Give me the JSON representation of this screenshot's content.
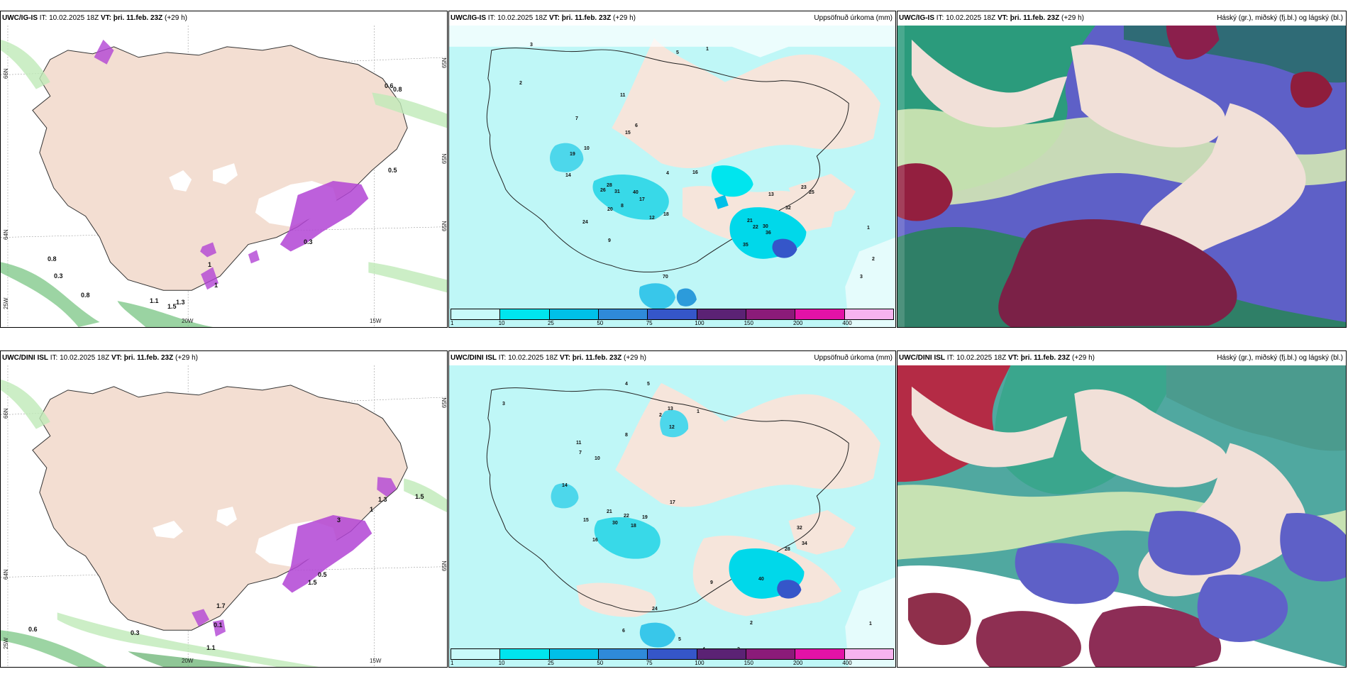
{
  "page": {
    "title": "UWC model comparison panels"
  },
  "panels": [
    {
      "model": "UWC/IG-IS",
      "it": "IT: 10.02.2025 18Z",
      "vt_label": "VT:",
      "vt": "þri. 11.feb. 23Z",
      "lead": "(+29 h)",
      "variable": "",
      "lon_labels": [
        "20W",
        "15W"
      ],
      "lat_labels": [
        "66N",
        "64N",
        "25W",
        "65N",
        "65N",
        "65N"
      ],
      "labels": [
        "0.6",
        "0.8",
        "0.5",
        "0.3",
        "1",
        "0.8",
        "0.8",
        "0.3",
        "1.1",
        "1.5",
        "1.3",
        "1"
      ]
    },
    {
      "model": "UWC/IG-IS",
      "it": "IT: 10.02.2025 18Z",
      "vt_label": "VT:",
      "vt": "þri. 11.feb. 23Z",
      "lead": "(+29 h)",
      "variable": "Uppsöfnuð úrkoma (mm)",
      "colorbar": {
        "ticks": [
          "1",
          "10",
          "25",
          "50",
          "75",
          "100",
          "150",
          "200",
          "400"
        ],
        "colors": [
          "#c8fafa",
          "#00e5ee",
          "#00c0e8",
          "#2f8ad9",
          "#3556c9",
          "#5b2274",
          "#8b1b79",
          "#e312a7",
          "#f7b3ef"
        ]
      },
      "precip_values": [
        "3",
        "5",
        "1",
        "2",
        "11",
        "10",
        "7",
        "6",
        "4",
        "8",
        "12",
        "15",
        "19",
        "14",
        "26",
        "31",
        "40",
        "17",
        "28",
        "24",
        "13",
        "21",
        "22",
        "30",
        "35",
        "70",
        "16",
        "9",
        "18",
        "20",
        "23",
        "25",
        "32",
        "36",
        "1",
        "2",
        "3"
      ]
    },
    {
      "model": "UWC/IG-IS",
      "it": "IT: 10.02.2025 18Z",
      "vt_label": "VT:",
      "vt": "þri. 11.feb. 23Z",
      "lead": "(+29 h)",
      "variable": "Háský (gr.), miðský (fj.bl.) og lágský (bl.)"
    },
    {
      "model": "UWC/DINI ISL",
      "it": "IT: 10.02.2025 18Z",
      "vt_label": "VT:",
      "vt": "þri. 11.feb. 23Z",
      "lead": "(+29 h)",
      "variable": "",
      "lon_labels": [
        "20W",
        "15W"
      ],
      "lat_labels": [
        "66N",
        "64N",
        "25W",
        "65N",
        "65N"
      ],
      "labels": [
        "0.6",
        "0.3",
        "0.1",
        "1.1",
        "1.5",
        "3",
        "1",
        "0.5",
        "1.5",
        "1.3",
        "1.7"
      ]
    },
    {
      "model": "UWC/DINI ISL",
      "it": "IT: 10.02.2025 18Z",
      "vt_label": "VT:",
      "vt": "þri. 11.feb. 23Z",
      "lead": "(+29 h)",
      "variable": "Uppsöfnuð úrkoma (mm)",
      "colorbar": {
        "ticks": [
          "1",
          "10",
          "25",
          "50",
          "75",
          "100",
          "150",
          "200",
          "400"
        ],
        "colors": [
          "#c8fafa",
          "#00e5ee",
          "#00c0e8",
          "#2f8ad9",
          "#3556c9",
          "#5b2274",
          "#8b1b79",
          "#e312a7",
          "#f7b3ef"
        ]
      },
      "precip_values": [
        "3",
        "4",
        "5",
        "1",
        "2",
        "7",
        "8",
        "10",
        "13",
        "12",
        "11",
        "14",
        "15",
        "16",
        "17",
        "18",
        "19",
        "21",
        "22",
        "24",
        "28",
        "30",
        "32",
        "34",
        "40",
        "9",
        "6",
        "5",
        "4",
        "3",
        "2",
        "1"
      ]
    },
    {
      "model": "UWC/DINI ISL",
      "it": "IT: 10.02.2025 18Z",
      "vt_label": "VT:",
      "vt": "þri. 11.feb. 23Z",
      "lead": "(+29 h)",
      "variable": "Háský (gr.), miðský (fj.bl.) og lágský (bl.)"
    }
  ]
}
